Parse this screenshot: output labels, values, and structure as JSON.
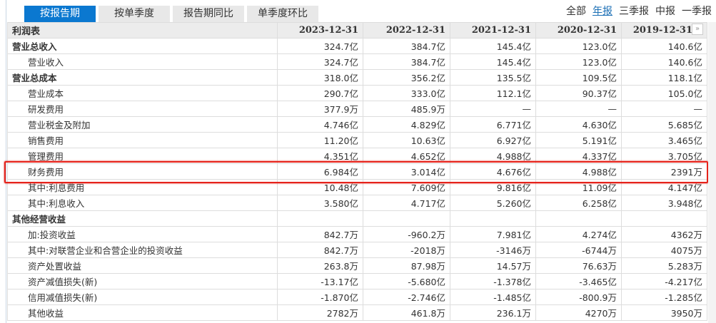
{
  "tabs": [
    "按报告期",
    "按单季度",
    "报告期同比",
    "单季度环比"
  ],
  "active_tab": 0,
  "filters": [
    "全部",
    "年报",
    "三季报",
    "中报",
    "一季报"
  ],
  "active_filter": 1,
  "table": {
    "title": "利润表",
    "columns": [
      "2023-12-31",
      "2022-12-31",
      "2021-12-31",
      "2020-12-31",
      "2019-12-31"
    ],
    "more_icon": "double-chevron-right-icon",
    "rows": [
      {
        "label": "营业总收入",
        "bold": true,
        "values": [
          "324.7亿",
          "384.7亿",
          "145.4亿",
          "123.0亿",
          "140.6亿"
        ]
      },
      {
        "label": "营业收入",
        "values": [
          "324.7亿",
          "384.7亿",
          "145.4亿",
          "123.0亿",
          "140.6亿"
        ]
      },
      {
        "label": "营业总成本",
        "bold": true,
        "values": [
          "318.0亿",
          "356.2亿",
          "135.5亿",
          "109.5亿",
          "118.1亿"
        ]
      },
      {
        "label": "营业成本",
        "values": [
          "290.7亿",
          "333.0亿",
          "112.1亿",
          "90.37亿",
          "105.0亿"
        ]
      },
      {
        "label": "研发费用",
        "values": [
          "377.9万",
          "485.9万",
          "—",
          "—",
          "—"
        ]
      },
      {
        "label": "营业税金及附加",
        "values": [
          "4.746亿",
          "4.829亿",
          "6.771亿",
          "4.630亿",
          "5.685亿"
        ]
      },
      {
        "label": "销售费用",
        "values": [
          "11.20亿",
          "10.63亿",
          "6.927亿",
          "5.191亿",
          "3.465亿"
        ]
      },
      {
        "label": "管理费用",
        "values": [
          "4.351亿",
          "4.652亿",
          "4.988亿",
          "4.337亿",
          "3.705亿"
        ]
      },
      {
        "label": "财务费用",
        "highlighted": true,
        "values": [
          "6.984亿",
          "3.014亿",
          "4.676亿",
          "4.988亿",
          "2391万"
        ]
      },
      {
        "label": "其中:利息费用",
        "values": [
          "10.48亿",
          "7.609亿",
          "9.816亿",
          "11.09亿",
          "4.147亿"
        ]
      },
      {
        "label": "其中:利息收入",
        "values": [
          "3.580亿",
          "4.717亿",
          "5.260亿",
          "6.258亿",
          "3.948亿"
        ]
      },
      {
        "label": "其他经营收益",
        "bold": true,
        "values": [
          "",
          "",
          "",
          "",
          ""
        ]
      },
      {
        "label": "加:投资收益",
        "values": [
          "842.7万",
          "-960.2万",
          "7.981亿",
          "4.274亿",
          "4362万"
        ]
      },
      {
        "label": "其中:对联营企业和合营企业的投资收益",
        "values": [
          "842.7万",
          "-2018万",
          "-3146万",
          "-6744万",
          "4075万"
        ]
      },
      {
        "label": "资产处置收益",
        "values": [
          "263.8万",
          "87.98万",
          "14.57万",
          "76.63万",
          "5.283万"
        ]
      },
      {
        "label": "资产减值损失(新)",
        "values": [
          "-13.17亿",
          "-5.680亿",
          "-1.378亿",
          "-3.465亿",
          "-4.217亿"
        ]
      },
      {
        "label": "信用减值损失(新)",
        "values": [
          "-1.870亿",
          "-2.746亿",
          "-1.485亿",
          "-800.9万",
          "-1.285亿"
        ]
      },
      {
        "label": "其他收益",
        "values": [
          "2782万",
          "461.8万",
          "236.1万",
          "4270万",
          "3950万"
        ]
      }
    ]
  },
  "highlight_color": "#e5231b"
}
